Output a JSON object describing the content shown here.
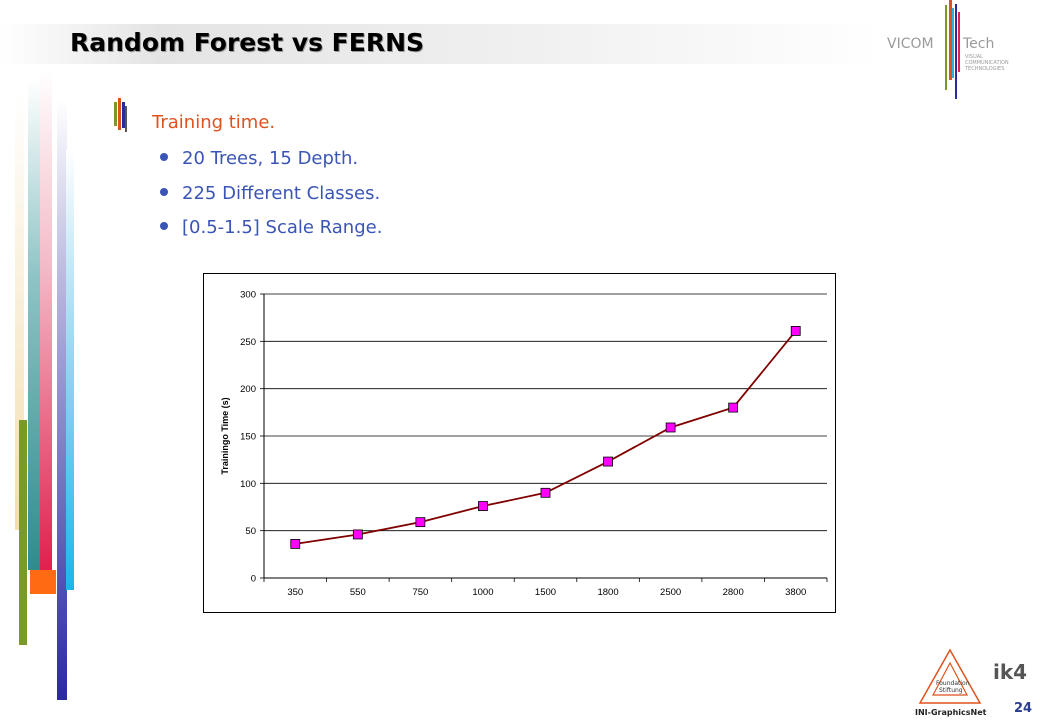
{
  "slide": {
    "title": "Random Forest vs FERNS",
    "bullet_main": "Training time.",
    "sub_bullets": [
      "20 Trees, 15 Depth.",
      "225 Different Classes.",
      "[0.5-1.5] Scale Range."
    ],
    "page_number": "24"
  },
  "logos": {
    "vicom": "VICOM",
    "tech": "Tech",
    "tagline": [
      "VISUAL",
      "COMMUNICATION",
      "TECHNOLOGIES"
    ],
    "ik4": "ik4",
    "foundation": [
      "Foundation",
      "Stiftung"
    ],
    "ini": "INI-GraphicsNet"
  },
  "colors": {
    "accent_orange": "#e0521c",
    "text_blue": "#3a55b5",
    "line": "#800000",
    "marker": "#ff00ff"
  },
  "chart_data": {
    "type": "line",
    "categories": [
      "350",
      "550",
      "750",
      "1000",
      "1500",
      "1800",
      "2500",
      "2800",
      "3800"
    ],
    "values": [
      36,
      46,
      59,
      76,
      90,
      123,
      159,
      180,
      261
    ],
    "ylabel": "Trainingo Time (s)",
    "xlabel": "",
    "ylim": [
      0,
      300
    ],
    "yticks": [
      0,
      50,
      100,
      150,
      200,
      250,
      300
    ],
    "grid": true
  }
}
